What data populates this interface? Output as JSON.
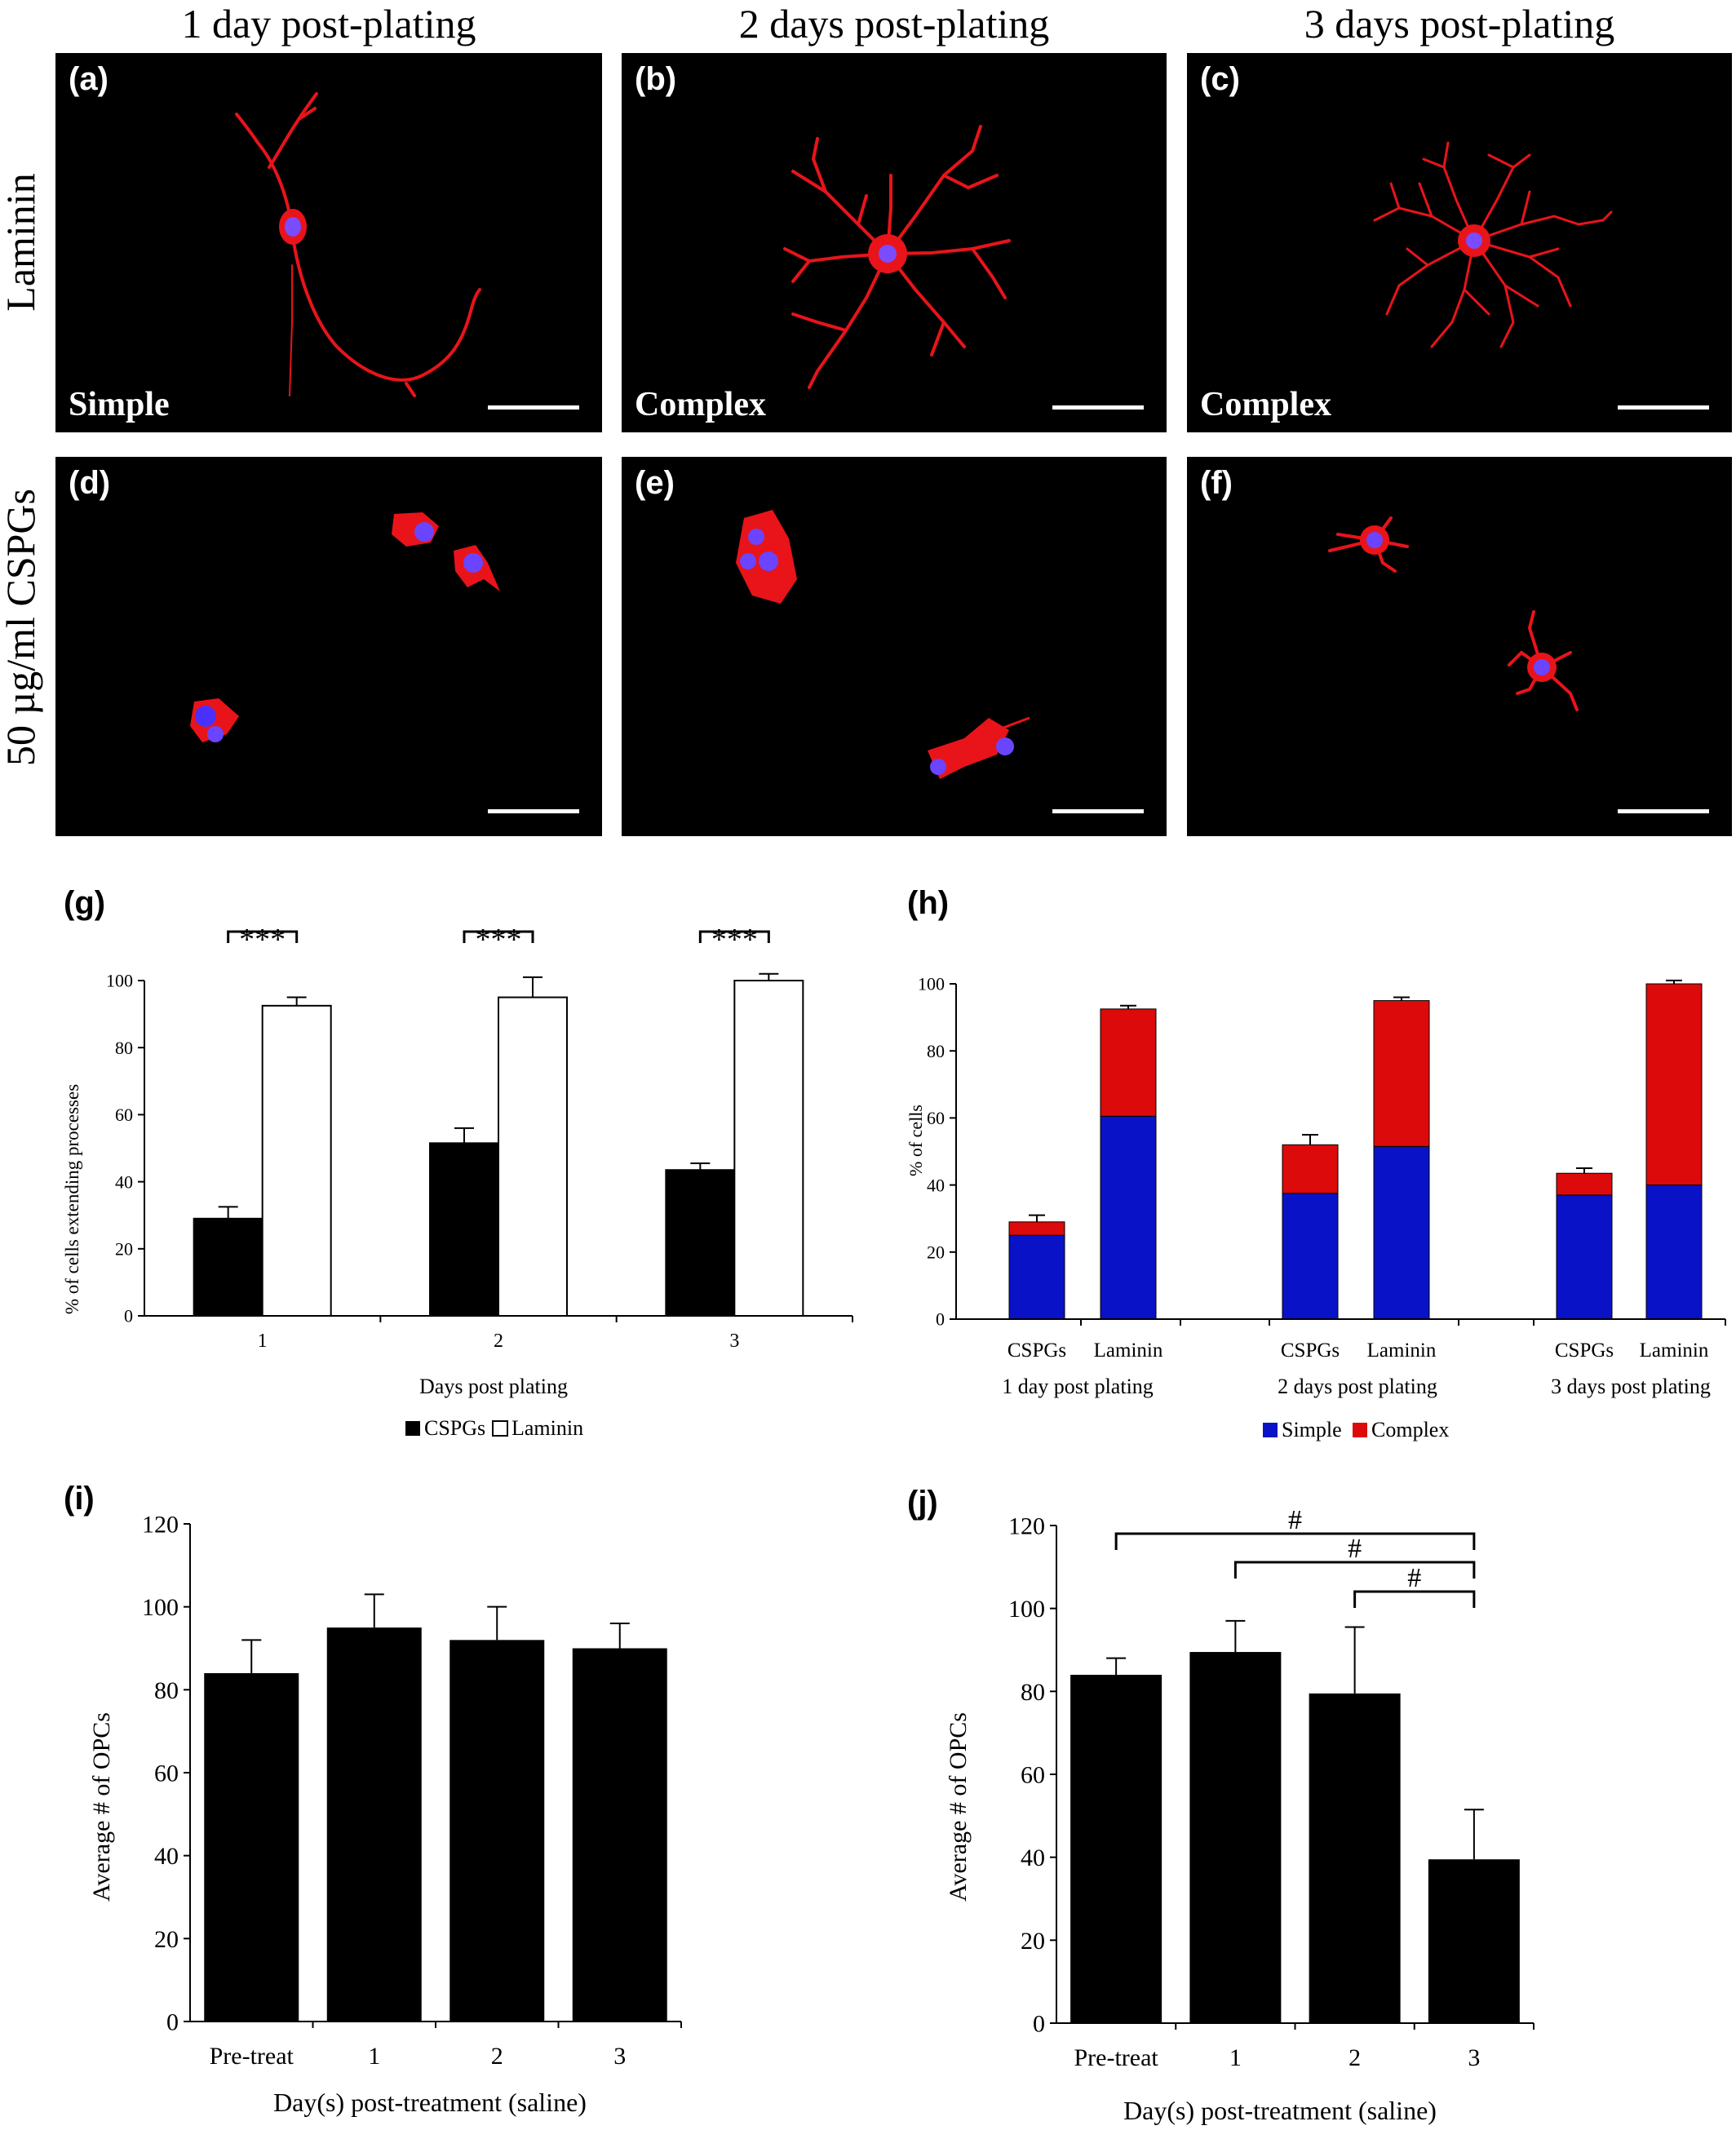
{
  "column_titles": [
    "1 day post-plating",
    "2 days post-plating",
    "3 days post-plating"
  ],
  "row_titles": [
    "Laminin",
    "50 µg/ml CSPGs"
  ],
  "panels": {
    "a": {
      "label": "(a)",
      "morphology": "Simple"
    },
    "b": {
      "label": "(b)",
      "morphology": "Complex"
    },
    "c": {
      "label": "(c)",
      "morphology": "Complex"
    },
    "d": {
      "label": "(d)"
    },
    "e": {
      "label": "(e)"
    },
    "f": {
      "label": "(f)"
    },
    "g": {
      "label": "(g)"
    },
    "h": {
      "label": "(h)"
    },
    "i": {
      "label": "(i)"
    },
    "j": {
      "label": "(j)"
    }
  },
  "colors": {
    "cell_stain": "#e8141a",
    "nucleus_stain": "#5a3cff",
    "simple": "#0a12c8",
    "complex": "#dc0a0a",
    "bar_black": "#000000",
    "bar_white": "#ffffff"
  },
  "chart_data": [
    {
      "id": "g",
      "type": "bar",
      "categories": [
        "1",
        "2",
        "3"
      ],
      "series": [
        {
          "name": "CSPGs",
          "values": [
            29,
            51.5,
            43.5
          ],
          "errors": [
            3.5,
            4.5,
            2
          ]
        },
        {
          "name": "Laminin",
          "values": [
            92.5,
            95,
            100
          ],
          "errors": [
            2.5,
            6,
            2
          ]
        }
      ],
      "xlabel": "Days post plating",
      "ylabel": "% of cells extending processes",
      "ylim": [
        0,
        100
      ],
      "yticks": [
        "0",
        "20",
        "40",
        "60",
        "80",
        "100"
      ],
      "annotations": [
        "***",
        "***",
        "***"
      ],
      "legend": "bottom"
    },
    {
      "id": "h",
      "type": "bar",
      "stacked": true,
      "groups": [
        "1 day post plating",
        "2 days post plating",
        "3 days post plating"
      ],
      "categories": [
        "CSPGs",
        "Laminin",
        "CSPGs",
        "Laminin",
        "CSPGs",
        "Laminin"
      ],
      "series": [
        {
          "name": "Simple",
          "values": [
            25,
            60.5,
            37.5,
            51.5,
            37,
            40
          ],
          "errors": [
            2.5,
            3.5,
            2,
            3,
            3,
            2.5
          ]
        },
        {
          "name": "Complex",
          "values": [
            4,
            32,
            14.5,
            43.5,
            6.5,
            60
          ],
          "errors": [
            2,
            1,
            3,
            1,
            1.5,
            1
          ]
        }
      ],
      "xlabel": "",
      "ylabel": "% of cells",
      "ylim": [
        0,
        100
      ],
      "yticks": [
        "0",
        "20",
        "40",
        "60",
        "80",
        "100"
      ],
      "legend": "bottom"
    },
    {
      "id": "i",
      "type": "bar",
      "categories": [
        "Pre-treat",
        "1",
        "2",
        "3"
      ],
      "values": [
        84,
        95,
        92,
        90
      ],
      "errors": [
        8,
        8,
        8,
        6
      ],
      "xlabel": "Day(s) post-treatment (saline)",
      "ylabel": "Average # of OPCs",
      "ylim": [
        0,
        120
      ],
      "yticks": [
        "0",
        "20",
        "40",
        "60",
        "80",
        "100",
        "120"
      ]
    },
    {
      "id": "j",
      "type": "bar",
      "categories": [
        "Pre-treat",
        "1",
        "2",
        "3"
      ],
      "values": [
        84,
        89.5,
        79.5,
        39.5
      ],
      "errors": [
        4,
        7.5,
        16,
        12
      ],
      "xlabel": "Day(s) post-treatment (saline)",
      "ylabel": "Average # of OPCs",
      "ylim": [
        0,
        120
      ],
      "yticks": [
        "0",
        "20",
        "40",
        "60",
        "80",
        "100",
        "120"
      ],
      "annotations": [
        "#",
        "#",
        "#"
      ]
    }
  ]
}
